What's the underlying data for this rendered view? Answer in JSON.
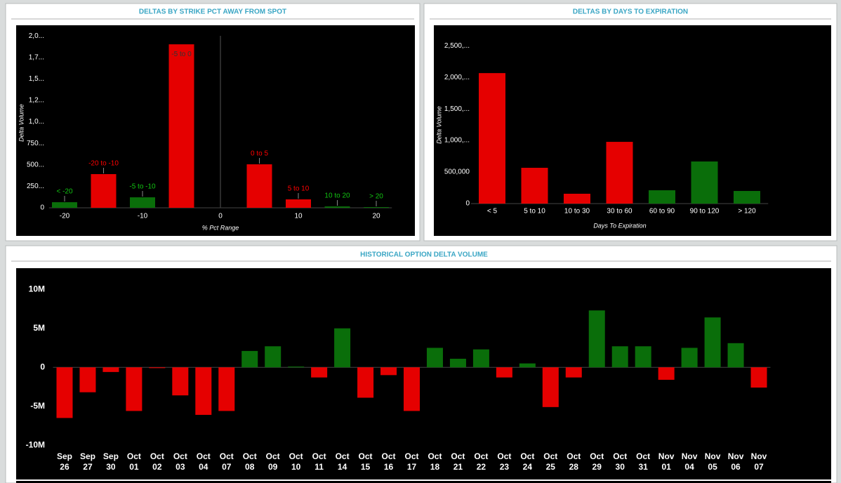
{
  "chart_data": [
    {
      "type": "bar",
      "title": "DELTAS BY STRIKE PCT AWAY FROM SPOT",
      "x_label": "% Pct Range",
      "y_label": "Delta Volume",
      "categories": [
        "< -20",
        "-20 to -10",
        "-5 to -10",
        "-5 to 0",
        "0 to 5",
        "5 to 10",
        "10 to 20",
        "> 20"
      ],
      "x": [
        -20,
        -15,
        -10,
        -5,
        5,
        10,
        15,
        20
      ],
      "values": [
        65000,
        392000,
        122000,
        1902000,
        506000,
        98000,
        16000,
        8000
      ],
      "colors": [
        "#0a6e0a",
        "#e50000",
        "#0a6e0a",
        "#e50000",
        "#e50000",
        "#e50000",
        "#0a6e0a",
        "#0a6e0a"
      ],
      "xlim": [
        -22,
        22
      ],
      "xticks": [
        -20,
        -10,
        0,
        10,
        20
      ],
      "ylim": [
        0,
        2050000
      ],
      "yticks": [
        0,
        {
          "value": 250000,
          "label": "250..."
        },
        {
          "value": 500000,
          "label": "500..."
        },
        {
          "value": 750000,
          "label": "750..."
        },
        {
          "value": 1000000,
          "label": "1,0..."
        },
        {
          "value": 1250000,
          "label": "1,2..."
        },
        {
          "value": 1500000,
          "label": "1,5..."
        },
        {
          "value": 1750000,
          "label": "1,7..."
        },
        {
          "value": 2000000,
          "label": "2,0..."
        }
      ],
      "grid": false
    },
    {
      "type": "bar",
      "title": "DELTAS BY DAYS TO EXPIRATION",
      "x_label": "Days To Expiration",
      "y_label": "Delta Volume",
      "categories": [
        "< 5",
        "5 to 10",
        "10 to 30",
        "30 to 60",
        "60 to 90",
        "90 to 120",
        "> 120"
      ],
      "values": [
        2067000,
        567000,
        156000,
        978000,
        211000,
        667000,
        200000
      ],
      "colors": [
        "#e50000",
        "#e50000",
        "#e50000",
        "#e50000",
        "#0a6e0a",
        "#0a6e0a",
        "#0a6e0a"
      ],
      "ylim": [
        0,
        2680000
      ],
      "yticks": [
        0,
        {
          "value": 500000,
          "label": "500,000"
        },
        {
          "value": 1000000,
          "label": "1,000,..."
        },
        {
          "value": 1500000,
          "label": "1,500,..."
        },
        {
          "value": 2000000,
          "label": "2,000,..."
        },
        {
          "value": 2500000,
          "label": "2,500,..."
        }
      ],
      "grid": false
    },
    {
      "type": "bar",
      "title": "HISTORICAL OPTION DELTA VOLUME",
      "categories": [
        [
          "Sep",
          "26"
        ],
        [
          "Sep",
          "27"
        ],
        [
          "Sep",
          "30"
        ],
        [
          "Oct",
          "01"
        ],
        [
          "Oct",
          "02"
        ],
        [
          "Oct",
          "03"
        ],
        [
          "Oct",
          "04"
        ],
        [
          "Oct",
          "07"
        ],
        [
          "Oct",
          "08"
        ],
        [
          "Oct",
          "09"
        ],
        [
          "Oct",
          "10"
        ],
        [
          "Oct",
          "11"
        ],
        [
          "Oct",
          "14"
        ],
        [
          "Oct",
          "15"
        ],
        [
          "Oct",
          "16"
        ],
        [
          "Oct",
          "17"
        ],
        [
          "Oct",
          "18"
        ],
        [
          "Oct",
          "21"
        ],
        [
          "Oct",
          "22"
        ],
        [
          "Oct",
          "23"
        ],
        [
          "Oct",
          "24"
        ],
        [
          "Oct",
          "25"
        ],
        [
          "Oct",
          "28"
        ],
        [
          "Oct",
          "29"
        ],
        [
          "Oct",
          "30"
        ],
        [
          "Oct",
          "31"
        ],
        [
          "Nov",
          "01"
        ],
        [
          "Nov",
          "04"
        ],
        [
          "Nov",
          "05"
        ],
        [
          "Nov",
          "06"
        ],
        [
          "Nov",
          "07"
        ]
      ],
      "values": [
        -6500000,
        -3200000,
        -600000,
        -5600000,
        -100000,
        -3600000,
        -6100000,
        -5600000,
        2100000,
        2700000,
        100000,
        -1300000,
        5000000,
        -3900000,
        -1000000,
        -5600000,
        2500000,
        1100000,
        2300000,
        -1300000,
        500000,
        -5100000,
        -1300000,
        7300000,
        2700000,
        2700000,
        -1600000,
        2500000,
        6400000,
        3100000,
        -2600000
      ],
      "positive_color": "#0a6e0a",
      "negative_color": "#e50000",
      "ylim": [
        -10500000,
        12000000
      ],
      "yticks": [
        {
          "value": -10000000,
          "label": "-10M"
        },
        {
          "value": -5000000,
          "label": "-5M"
        },
        0,
        {
          "value": 5000000,
          "label": "5M"
        },
        {
          "value": 10000000,
          "label": "10M"
        }
      ],
      "grid": false
    }
  ]
}
